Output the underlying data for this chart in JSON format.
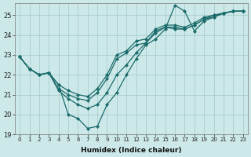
{
  "xlabel": "Humidex (Indice chaleur)",
  "ylabel": "",
  "bg_color": "#cde8e8",
  "grid_color": "#a0c8c8",
  "line_color": "#1a6b6b",
  "xlim": [
    -0.5,
    23.5
  ],
  "ylim": [
    19.0,
    25.6
  ],
  "yticks": [
    19,
    20,
    21,
    22,
    23,
    24,
    25
  ],
  "xticks": [
    0,
    1,
    2,
    3,
    4,
    5,
    6,
    7,
    8,
    9,
    10,
    11,
    12,
    13,
    14,
    15,
    16,
    17,
    18,
    19,
    20,
    21,
    22,
    23
  ],
  "series": [
    [
      22.9,
      22.3,
      22.0,
      22.1,
      21.5,
      20.0,
      19.8,
      19.3,
      19.4,
      20.5,
      21.1,
      22.0,
      22.8,
      23.5,
      23.8,
      24.3,
      25.5,
      25.2,
      24.2,
      24.7,
      24.9,
      25.1,
      25.2,
      25.2
    ],
    [
      22.9,
      22.3,
      22.0,
      22.1,
      21.3,
      21.0,
      20.8,
      20.7,
      21.1,
      21.8,
      22.8,
      23.1,
      23.5,
      23.6,
      24.1,
      24.4,
      24.4,
      24.3,
      24.5,
      24.8,
      24.9,
      25.1,
      25.2,
      25.2
    ],
    [
      22.9,
      22.3,
      22.0,
      22.1,
      21.5,
      21.2,
      21.0,
      20.9,
      21.3,
      22.0,
      23.0,
      23.2,
      23.7,
      23.8,
      24.3,
      24.5,
      24.5,
      24.4,
      24.6,
      24.9,
      25.0,
      25.1,
      25.2,
      25.2
    ],
    [
      22.9,
      22.3,
      22.0,
      22.1,
      21.2,
      20.8,
      20.5,
      20.3,
      20.5,
      21.1,
      22.0,
      22.5,
      23.1,
      23.6,
      24.2,
      24.4,
      24.3,
      24.3,
      24.5,
      24.8,
      25.0,
      25.1,
      25.2,
      25.2
    ]
  ]
}
